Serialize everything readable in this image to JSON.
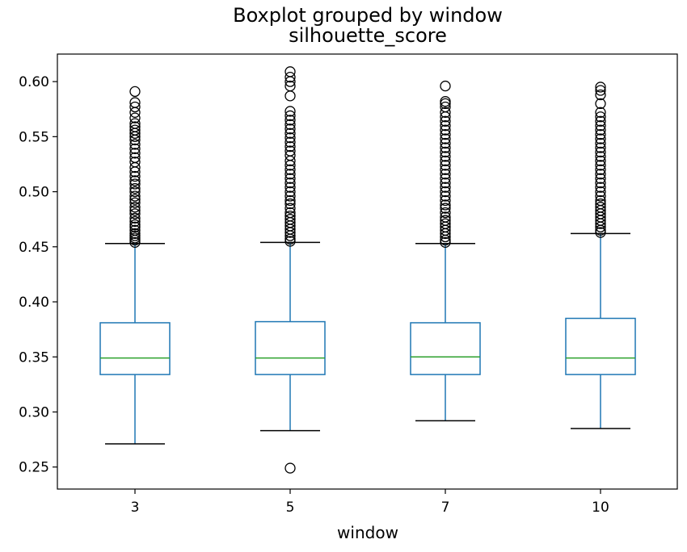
{
  "chart_data": {
    "type": "box",
    "suptitle": "Boxplot grouped by window",
    "title": "silhouette_score",
    "xlabel": "window",
    "ylabel": "",
    "categories": [
      "3",
      "5",
      "7",
      "10"
    ],
    "ylim": [
      0.23,
      0.625
    ],
    "yticks": [
      "0.25",
      "0.30",
      "0.35",
      "0.40",
      "0.45",
      "0.50",
      "0.55",
      "0.60"
    ],
    "grid": false,
    "colors": {
      "box": "#1f77b4",
      "median": "#2ca02c",
      "whisker": "#1f77b4",
      "cap": "#000000",
      "flier": "#000000"
    },
    "boxes": [
      {
        "category": "3",
        "whisker_low": 0.271,
        "q1": 0.334,
        "median": 0.349,
        "q3": 0.381,
        "whisker_high": 0.453,
        "fliers": [
          0.454,
          0.456,
          0.458,
          0.46,
          0.462,
          0.465,
          0.468,
          0.47,
          0.473,
          0.476,
          0.48,
          0.483,
          0.486,
          0.49,
          0.493,
          0.496,
          0.5,
          0.503,
          0.507,
          0.51,
          0.514,
          0.518,
          0.522,
          0.527,
          0.531,
          0.535,
          0.539,
          0.543,
          0.547,
          0.55,
          0.553,
          0.556,
          0.559,
          0.562,
          0.567,
          0.572,
          0.577,
          0.581,
          0.591
        ]
      },
      {
        "category": "5",
        "whisker_low": 0.283,
        "q1": 0.334,
        "median": 0.349,
        "q3": 0.382,
        "whisker_high": 0.454,
        "fliers": [
          0.249,
          0.455,
          0.457,
          0.46,
          0.463,
          0.466,
          0.469,
          0.472,
          0.475,
          0.478,
          0.481,
          0.485,
          0.489,
          0.492,
          0.496,
          0.5,
          0.504,
          0.508,
          0.512,
          0.516,
          0.52,
          0.524,
          0.528,
          0.533,
          0.537,
          0.541,
          0.545,
          0.549,
          0.553,
          0.557,
          0.561,
          0.565,
          0.569,
          0.573,
          0.587,
          0.596,
          0.6,
          0.604,
          0.609
        ]
      },
      {
        "category": "7",
        "whisker_low": 0.292,
        "q1": 0.334,
        "median": 0.35,
        "q3": 0.381,
        "whisker_high": 0.453,
        "fliers": [
          0.454,
          0.456,
          0.459,
          0.462,
          0.465,
          0.468,
          0.471,
          0.474,
          0.477,
          0.481,
          0.485,
          0.488,
          0.492,
          0.496,
          0.5,
          0.504,
          0.508,
          0.512,
          0.516,
          0.52,
          0.524,
          0.528,
          0.532,
          0.536,
          0.54,
          0.544,
          0.548,
          0.552,
          0.556,
          0.56,
          0.564,
          0.568,
          0.572,
          0.577,
          0.58,
          0.582,
          0.596
        ]
      },
      {
        "category": "10",
        "whisker_low": 0.285,
        "q1": 0.334,
        "median": 0.349,
        "q3": 0.385,
        "whisker_high": 0.462,
        "fliers": [
          0.463,
          0.465,
          0.468,
          0.471,
          0.474,
          0.477,
          0.48,
          0.483,
          0.486,
          0.489,
          0.492,
          0.496,
          0.5,
          0.504,
          0.508,
          0.512,
          0.516,
          0.52,
          0.524,
          0.528,
          0.532,
          0.536,
          0.54,
          0.544,
          0.548,
          0.552,
          0.556,
          0.56,
          0.564,
          0.568,
          0.572,
          0.58,
          0.588,
          0.592,
          0.595
        ]
      }
    ]
  }
}
